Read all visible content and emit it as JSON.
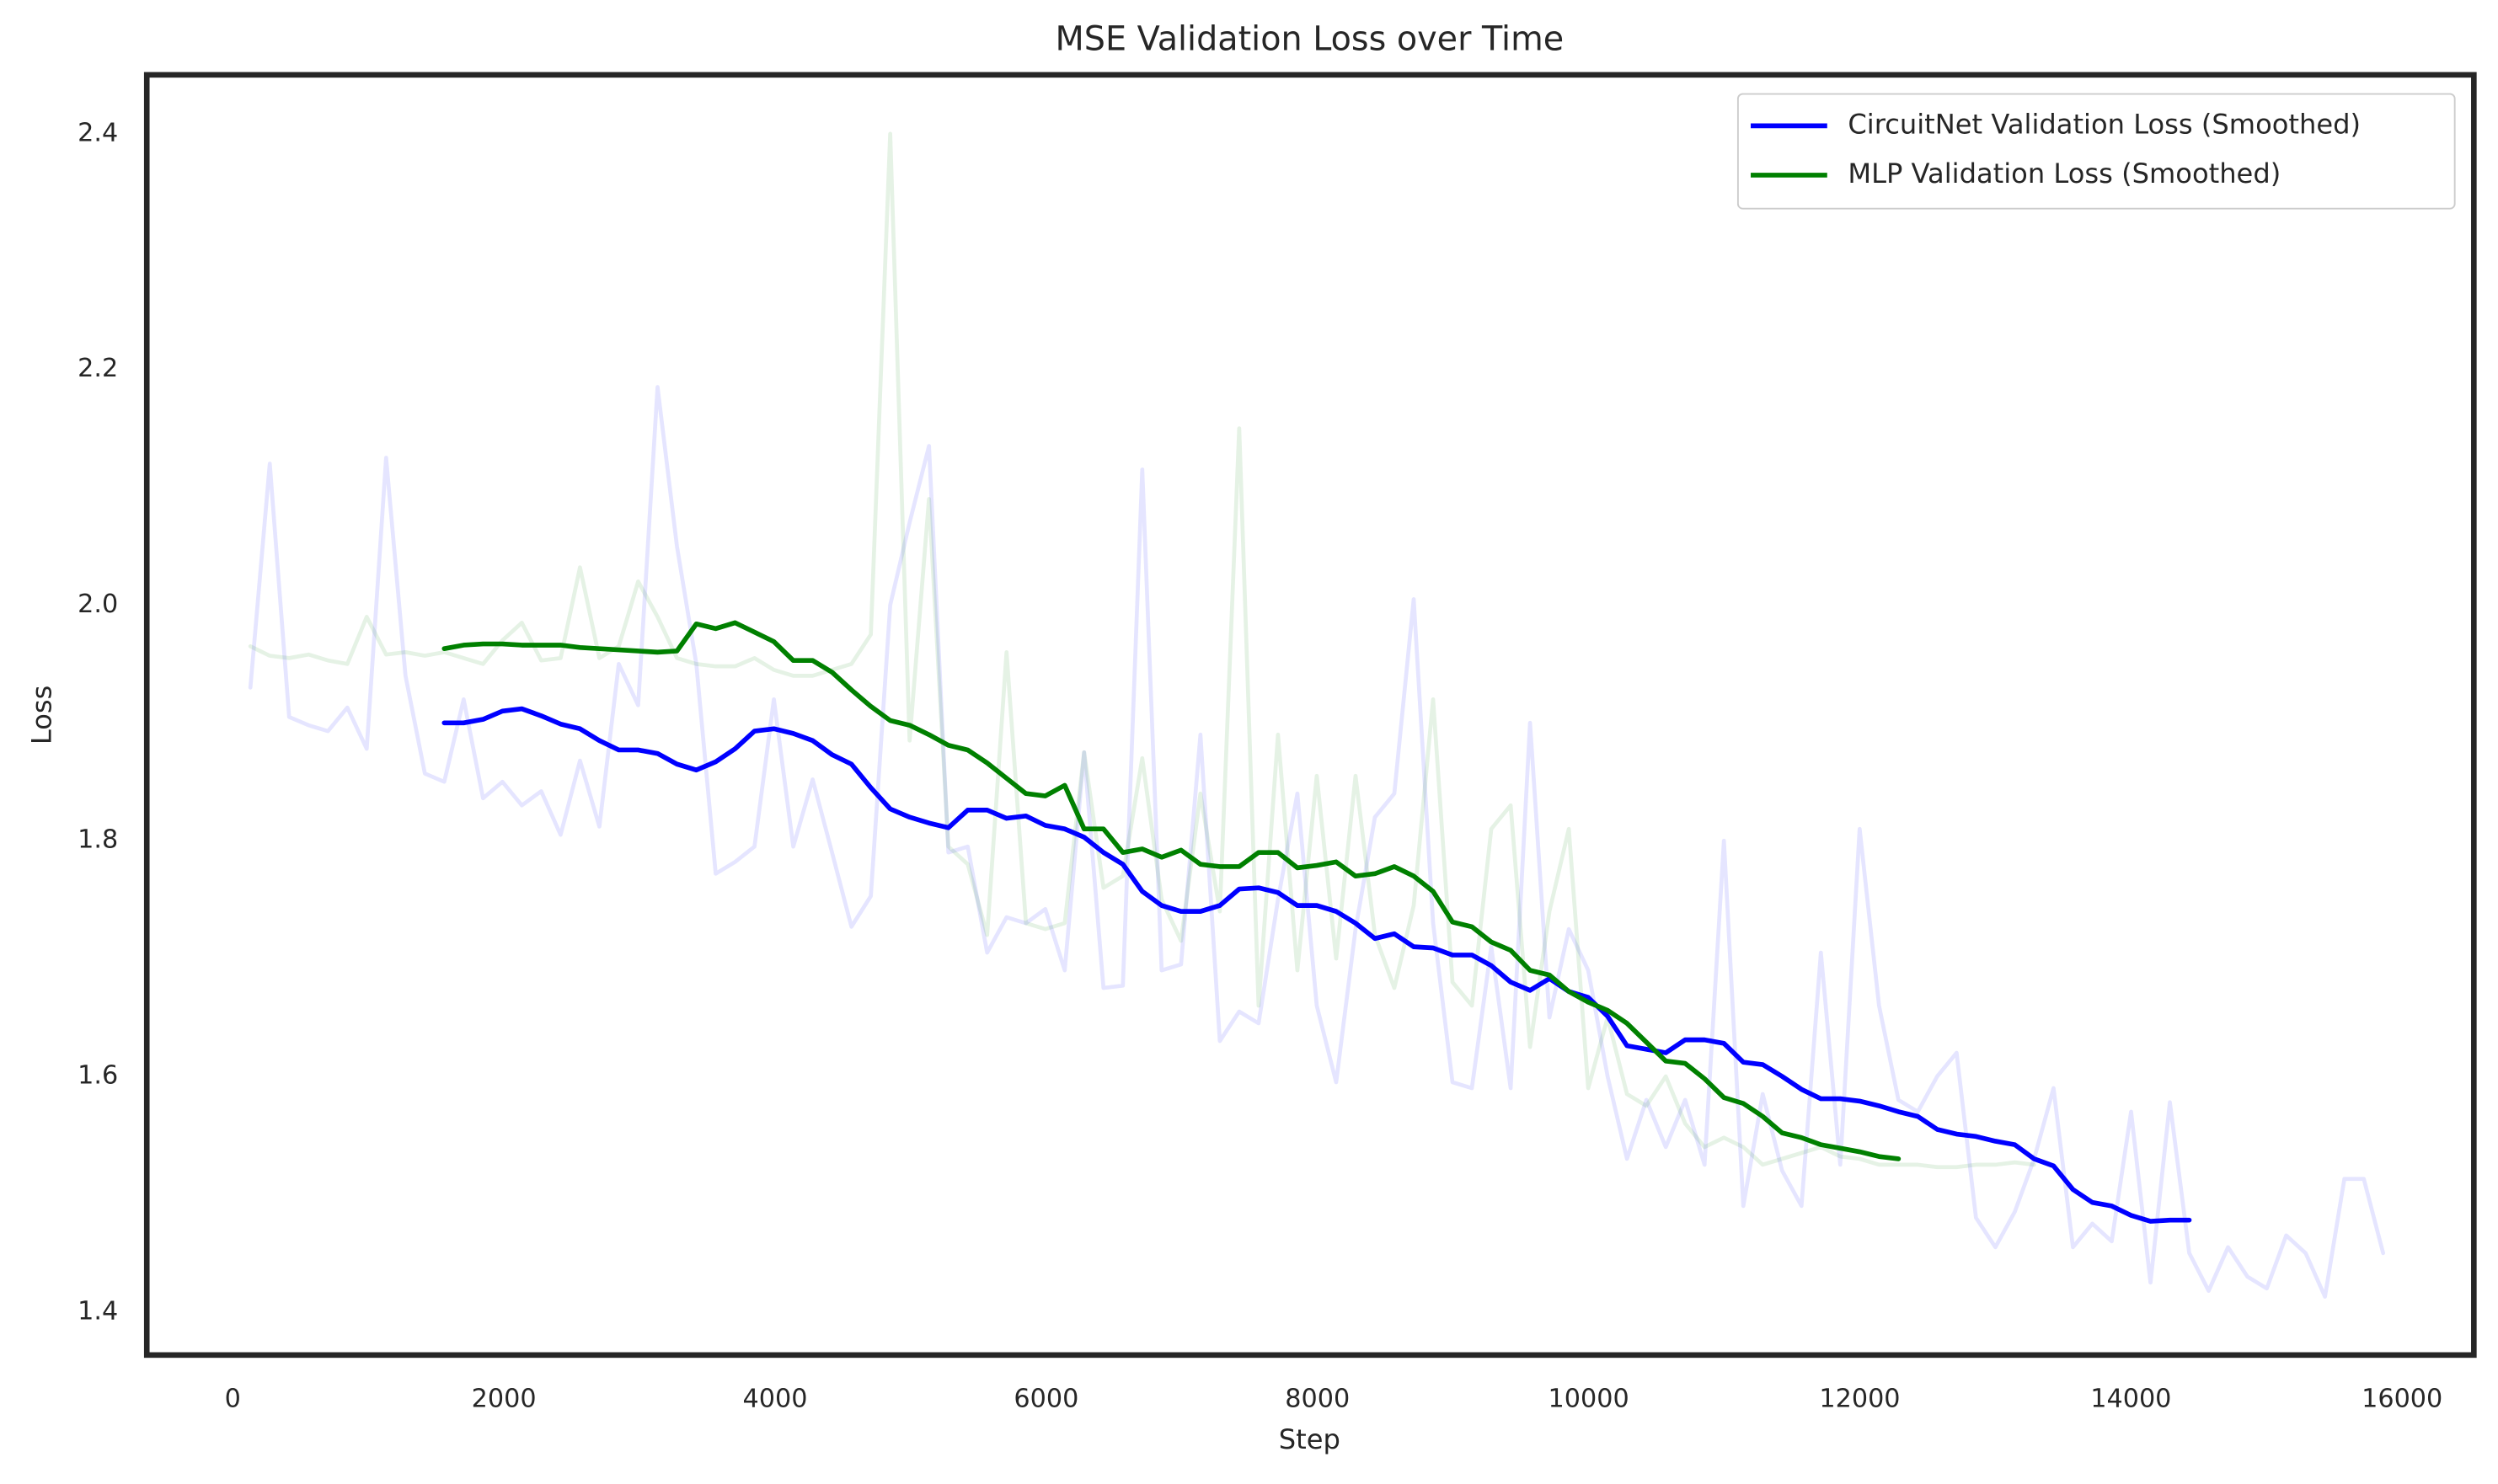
{
  "chart_data": {
    "type": "line",
    "title": "MSE Validation Loss over Time",
    "xlabel": "Step",
    "ylabel": "Loss",
    "x": [
      130,
      273,
      416,
      559,
      702,
      845,
      988,
      1131,
      1274,
      1417,
      1560,
      1703,
      1846,
      1989,
      2132,
      2275,
      2418,
      2561,
      2704,
      2847,
      2990,
      3133,
      3276,
      3419,
      3562,
      3705,
      3848,
      3991,
      4134,
      4277,
      4420,
      4563,
      4706,
      4849,
      4992,
      5135,
      5278,
      5421,
      5564,
      5707,
      5850,
      5993,
      6136,
      6279,
      6422,
      6565,
      6708,
      6851,
      6994,
      7137,
      7280,
      7423,
      7566,
      7709,
      7852,
      7995,
      8138,
      8281,
      8424,
      8567,
      8710,
      8853,
      8996,
      9139,
      9282,
      9425,
      9568,
      9711,
      9854,
      9997,
      10140,
      10283,
      10426,
      10569,
      10712,
      10855,
      10998,
      11141,
      11284,
      11427,
      11570,
      11713,
      11856,
      11999,
      12142,
      12285,
      12428,
      12571,
      12714,
      12857,
      13000,
      13143,
      13286,
      13429,
      13572,
      13715,
      13858,
      14001,
      14144,
      14287,
      14430,
      14573,
      14716,
      14859,
      15002,
      15145,
      15288,
      15431,
      15574,
      15717,
      15860
    ],
    "series": [
      {
        "color": "#0000ff",
        "alpha": 0.1,
        "values": [
          1.93,
          2.12,
          1.905,
          1.898,
          1.893,
          1.913,
          1.878,
          2.125,
          1.94,
          1.857,
          1.85,
          1.92,
          1.836,
          1.85,
          1.83,
          1.842,
          1.805,
          1.868,
          1.812,
          1.95,
          1.915,
          2.185,
          2.05,
          1.95,
          1.772,
          1.782,
          1.795,
          1.92,
          1.795,
          1.852,
          1.79,
          1.727,
          1.753,
          2.0,
          2.07,
          2.135,
          1.79,
          1.795,
          1.705,
          1.735,
          1.73,
          1.742,
          1.69,
          1.875,
          1.675,
          1.677,
          2.115,
          1.69,
          1.695,
          1.89,
          1.63,
          1.655,
          1.645,
          1.75,
          1.84,
          1.66,
          1.595,
          1.725,
          1.82,
          1.84,
          2.005,
          1.73,
          1.595,
          1.59,
          1.71,
          1.59,
          1.9,
          1.65,
          1.725,
          1.69,
          1.6,
          1.53,
          1.58,
          1.54,
          1.58,
          1.525,
          1.8,
          1.49,
          1.585,
          1.52,
          1.49,
          1.705,
          1.525,
          1.81,
          1.66,
          1.58,
          1.57,
          1.6,
          1.62,
          1.48,
          1.455,
          1.485,
          1.53,
          1.59,
          1.455,
          1.475,
          1.46,
          1.57,
          1.425,
          1.578,
          1.45,
          1.418,
          1.455,
          1.43,
          1.42,
          1.465,
          1.45,
          1.413,
          1.513,
          1.513,
          1.45
        ]
      },
      {
        "color": "#008000",
        "alpha": 0.1,
        "values": [
          1.965,
          1.957,
          1.955,
          1.958,
          1.953,
          1.95,
          1.99,
          1.958,
          1.96,
          1.957,
          1.96,
          1.955,
          1.95,
          1.97,
          1.985,
          1.953,
          1.955,
          2.032,
          1.955,
          1.965,
          2.02,
          1.99,
          1.955,
          1.95,
          1.948,
          1.948,
          1.955,
          1.945,
          1.94,
          1.94,
          1.945,
          1.95,
          1.975,
          2.4,
          1.885,
          2.09,
          1.795,
          1.78,
          1.72,
          1.96,
          1.73,
          1.725,
          1.73,
          1.875,
          1.76,
          1.77,
          1.87,
          1.75,
          1.715,
          1.84,
          1.74,
          2.15,
          1.66,
          1.89,
          1.69,
          1.855,
          1.7,
          1.855,
          1.72,
          1.675,
          1.745,
          1.92,
          1.68,
          1.66,
          1.81,
          1.83,
          1.625,
          1.74,
          1.81,
          1.59,
          1.65,
          1.585,
          1.575,
          1.6,
          1.56,
          1.54,
          1.548,
          1.54,
          1.525,
          1.53,
          1.535,
          1.54,
          1.532,
          1.53,
          1.525,
          1.525,
          1.525,
          1.523,
          1.523,
          1.525,
          1.525,
          1.527,
          1.525,
          null,
          null,
          null,
          null,
          null,
          null,
          null,
          null,
          null,
          null,
          null,
          null,
          null,
          null,
          null,
          null,
          null,
          null
        ]
      },
      {
        "name": "CircuitNet Validation Loss (Smoothed)",
        "color": "#0000ff",
        "values": [
          null,
          null,
          null,
          null,
          null,
          null,
          null,
          null,
          null,
          null,
          1.9,
          1.9,
          1.903,
          1.91,
          1.912,
          1.906,
          1.899,
          1.895,
          1.885,
          1.877,
          1.877,
          1.874,
          1.865,
          1.86,
          1.867,
          1.878,
          1.893,
          1.895,
          1.891,
          1.885,
          1.873,
          1.865,
          1.845,
          1.827,
          1.82,
          1.815,
          1.811,
          1.826,
          1.826,
          1.819,
          1.821,
          1.813,
          1.81,
          1.803,
          1.79,
          1.78,
          1.757,
          1.745,
          1.74,
          1.74,
          1.745,
          1.759,
          1.76,
          1.756,
          1.745,
          1.745,
          1.74,
          1.73,
          1.717,
          1.721,
          1.71,
          1.709,
          1.703,
          1.703,
          1.694,
          1.68,
          1.673,
          1.683,
          1.672,
          1.667,
          1.651,
          1.626,
          1.623,
          1.62,
          1.631,
          1.631,
          1.628,
          1.612,
          1.61,
          1.6,
          1.589,
          1.581,
          1.581,
          1.579,
          1.575,
          1.57,
          1.566,
          1.555,
          1.551,
          1.549,
          1.545,
          1.542,
          1.53,
          1.524,
          1.504,
          1.493,
          1.49,
          1.482,
          1.477,
          1.478,
          1.478,
          null,
          null,
          null,
          null,
          null,
          null,
          null,
          null,
          null,
          null
        ]
      },
      {
        "name": "MLP Validation Loss (Smoothed)",
        "color": "#008000",
        "values": [
          null,
          null,
          null,
          null,
          null,
          null,
          null,
          null,
          null,
          null,
          1.963,
          1.966,
          1.967,
          1.967,
          1.966,
          1.966,
          1.966,
          1.964,
          1.963,
          1.962,
          1.961,
          1.96,
          1.961,
          1.984,
          1.98,
          1.985,
          1.977,
          1.969,
          1.953,
          1.953,
          1.943,
          1.928,
          1.914,
          1.902,
          1.898,
          1.89,
          1.881,
          1.877,
          1.866,
          1.853,
          1.84,
          1.838,
          1.847,
          1.81,
          1.81,
          1.79,
          1.793,
          1.786,
          1.792,
          1.78,
          1.778,
          1.778,
          1.79,
          1.79,
          1.777,
          1.779,
          1.782,
          1.77,
          1.772,
          1.778,
          1.77,
          1.757,
          1.731,
          1.727,
          1.714,
          1.707,
          1.69,
          1.686,
          1.672,
          1.663,
          1.656,
          1.645,
          1.629,
          1.613,
          1.611,
          1.598,
          1.582,
          1.577,
          1.566,
          1.552,
          1.548,
          1.542,
          1.539,
          1.536,
          1.532,
          1.53,
          null,
          null,
          null,
          null,
          null,
          null,
          null,
          null,
          null,
          null,
          null,
          null,
          null,
          null,
          null,
          null,
          null,
          null,
          null,
          null,
          null,
          null,
          null,
          null,
          null
        ]
      }
    ],
    "xlim": [
      -634,
      16529
    ],
    "ylim": [
      1.3635,
      2.45
    ],
    "xticks": [
      0,
      2000,
      4000,
      6000,
      8000,
      10000,
      12000,
      14000,
      16000
    ],
    "yticks": [
      1.4,
      1.6,
      1.8,
      {
        "value": 2,
        "label": "2.0"
      },
      2.2,
      2.4
    ],
    "grid": false,
    "legend": "upper right"
  }
}
